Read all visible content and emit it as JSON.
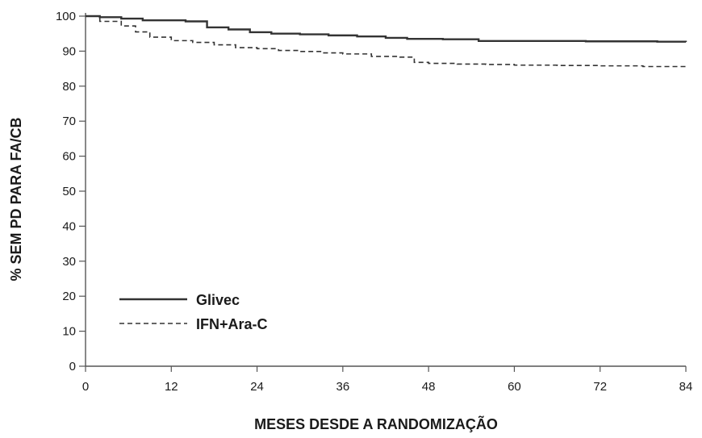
{
  "chart_data": {
    "type": "line",
    "xlabel": "MESES DESDE A RANDOMIZAÇÃO",
    "ylabel": "% SEM PD PARA FA/CB",
    "xlim": [
      0,
      84
    ],
    "ylim": [
      0,
      100
    ],
    "x_ticks": [
      0,
      12,
      24,
      36,
      48,
      60,
      72,
      84
    ],
    "y_ticks": [
      0,
      10,
      20,
      30,
      40,
      50,
      60,
      70,
      80,
      90,
      100
    ],
    "grid": false,
    "legend_position": "bottom-left",
    "series": [
      {
        "name": "Glivec",
        "style": "solid",
        "color": "#333333",
        "x": [
          0,
          2,
          5,
          8,
          14,
          17,
          20,
          23,
          26,
          30,
          34,
          38,
          42,
          45,
          50,
          55,
          60,
          70,
          80,
          84
        ],
        "y": [
          100,
          99.7,
          99.3,
          98.8,
          98.5,
          96.8,
          96.2,
          95.4,
          95,
          94.8,
          94.5,
          94.2,
          93.8,
          93.5,
          93.4,
          92.9,
          92.9,
          92.8,
          92.7,
          92.6
        ]
      },
      {
        "name": "IFN+Ara-C",
        "style": "dashed",
        "color": "#333333",
        "x": [
          0,
          2,
          5,
          7,
          9,
          12,
          15,
          18,
          21,
          24,
          27,
          30,
          33,
          36,
          40,
          44,
          46,
          48,
          52,
          56,
          60,
          66,
          72,
          78,
          84
        ],
        "y": [
          100,
          98.5,
          97.2,
          95.5,
          94,
          93,
          92.5,
          91.8,
          91,
          90.7,
          90.2,
          89.9,
          89.5,
          89.2,
          88.5,
          88.3,
          86.8,
          86.5,
          86.3,
          86.2,
          86,
          85.9,
          85.8,
          85.6,
          85.3
        ]
      }
    ]
  }
}
